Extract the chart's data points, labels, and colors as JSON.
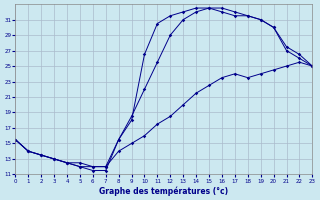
{
  "bg_color": "#cce8f0",
  "line_color": "#00008b",
  "grid_color": "#aabbcc",
  "xlabel": "Graphe des températures (°c)",
  "xlim": [
    0,
    23
  ],
  "ylim": [
    11,
    33
  ],
  "xticks": [
    0,
    1,
    2,
    3,
    4,
    5,
    6,
    7,
    8,
    9,
    10,
    11,
    12,
    13,
    14,
    15,
    16,
    17,
    18,
    19,
    20,
    21,
    22,
    23
  ],
  "yticks": [
    11,
    13,
    15,
    17,
    19,
    21,
    23,
    25,
    27,
    29,
    31
  ],
  "line1_x": [
    0,
    1,
    2,
    3,
    4,
    5,
    6,
    7,
    8,
    9,
    10,
    11,
    12,
    13,
    14,
    15,
    16,
    17,
    18,
    19,
    20,
    21,
    22,
    23
  ],
  "line1_y": [
    15.5,
    14.0,
    13.5,
    13.0,
    12.5,
    12.0,
    11.5,
    11.5,
    15.5,
    18.0,
    26.5,
    30.5,
    31.5,
    32.0,
    32.5,
    32.5,
    32.0,
    31.5,
    31.5,
    31.0,
    30.0,
    27.0,
    26.0,
    25.0
  ],
  "line2_x": [
    0,
    1,
    2,
    3,
    4,
    5,
    6,
    7,
    8,
    9,
    10,
    11,
    12,
    13,
    14,
    15,
    16,
    17,
    18,
    19,
    20,
    21,
    22,
    23
  ],
  "line2_y": [
    15.5,
    14.0,
    13.5,
    13.0,
    12.5,
    12.0,
    12.0,
    12.0,
    15.5,
    18.5,
    22.0,
    25.5,
    29.0,
    31.0,
    32.0,
    32.5,
    32.5,
    32.0,
    31.5,
    31.0,
    30.0,
    27.5,
    26.5,
    25.0
  ],
  "line3_x": [
    0,
    1,
    2,
    3,
    4,
    5,
    6,
    7,
    8,
    9,
    10,
    11,
    12,
    13,
    14,
    15,
    16,
    17,
    18,
    19,
    20,
    21,
    22,
    23
  ],
  "line3_y": [
    15.5,
    14.0,
    13.5,
    13.0,
    12.5,
    12.5,
    12.0,
    12.0,
    14.0,
    15.0,
    16.0,
    17.5,
    18.5,
    20.0,
    21.5,
    22.5,
    23.5,
    24.0,
    23.5,
    24.0,
    24.5,
    25.0,
    25.5,
    25.0
  ]
}
